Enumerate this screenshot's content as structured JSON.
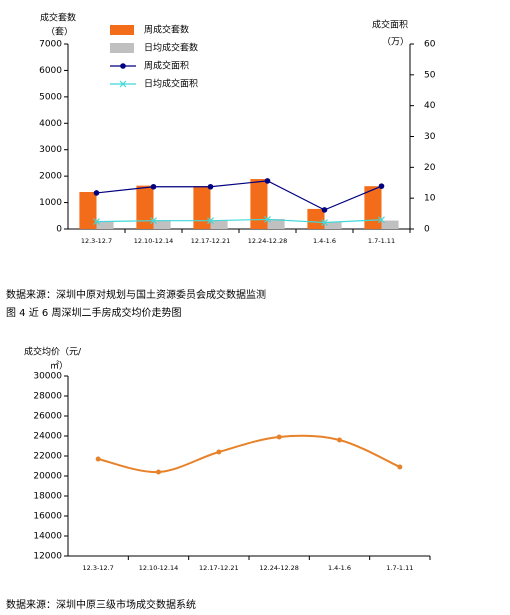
{
  "chart_data": [
    {
      "type": "bar",
      "ylabel": "成交套数",
      "yunit": "（套）",
      "y2label": "成交面积",
      "y2unit": "（万）",
      "categories": [
        "12.3-12.7",
        "12.10-12.14",
        "12.17-12.21",
        "12.24-12.28",
        "1.4-1.6",
        "1.7-1.11"
      ],
      "series": [
        {
          "name": "周成交套数",
          "color": "#f26c1a",
          "values": [
            1400,
            1640,
            1620,
            1890,
            760,
            1620
          ]
        },
        {
          "name": "日均成交套数",
          "color": "#c0c0c0",
          "values": [
            280,
            330,
            320,
            380,
            250,
            320
          ]
        },
        {
          "name": "周成交面积",
          "type": "line",
          "axis": "y2",
          "marker": "circle",
          "color": "#000080",
          "values": [
            11.7,
            13.7,
            13.7,
            15.6,
            6.2,
            13.9
          ]
        },
        {
          "name": "日均成交面积",
          "type": "line",
          "axis": "y2",
          "marker": "x",
          "color": "#40d8d8",
          "values": [
            2.4,
            2.7,
            2.7,
            3.1,
            2.1,
            3.0
          ]
        }
      ],
      "ylim": [
        0,
        7000
      ],
      "yticks": [
        0,
        1000,
        2000,
        3000,
        4000,
        5000,
        6000,
        7000
      ],
      "y2lim": [
        0,
        60
      ],
      "y2ticks": [
        0,
        10,
        20,
        30,
        40,
        50,
        60
      ],
      "legend": "top-left"
    },
    {
      "type": "line",
      "ylabel": "成交均价（元/",
      "yunit": "㎡）",
      "smooth": true,
      "categories": [
        "12.3-12.7",
        "12.10-12.14",
        "12.17-12.21",
        "12.24-12.28",
        "1.4-1.6",
        "1.7-1.11"
      ],
      "series": [
        {
          "name": "成交均价",
          "color": "#e8822a",
          "values": [
            21700,
            20400,
            22400,
            23900,
            23600,
            20900
          ]
        }
      ],
      "ylim": [
        12000,
        30000
      ],
      "yticks": [
        12000,
        14000,
        16000,
        18000,
        20000,
        22000,
        24000,
        26000,
        28000,
        30000
      ]
    }
  ],
  "document": {
    "source_1": "数据来源：深圳中原对规划与国土资源委员会成交数据监测",
    "figure_title": "图 4   近 6 周深圳二手房成交均价走势图",
    "source_2": "数据来源：深圳中原三级市场成交数据系统"
  }
}
